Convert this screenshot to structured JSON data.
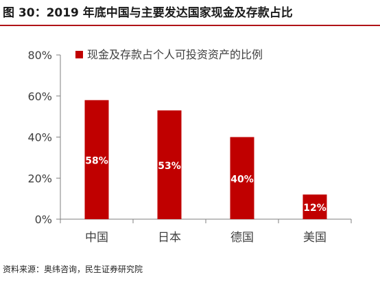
{
  "title": "图 30：2019 年底中国与主要发达国家现金及存款占比",
  "source": "资料来源：奥纬咨询，民生证券研究院",
  "colors": {
    "accent": "#b01317",
    "bar": "#c00000",
    "axis": "#7f7f7f",
    "label_text": "#404040",
    "data_label": "#ffffff"
  },
  "chart_data": {
    "type": "bar",
    "title": "",
    "xlabel": "",
    "ylabel": "",
    "categories": [
      "中国",
      "日本",
      "德国",
      "美国"
    ],
    "series": [
      {
        "name": "现金及存款占个人可投资资产的比例",
        "values": [
          58,
          53,
          40,
          12
        ],
        "labels": [
          "58%",
          "53%",
          "40%",
          "12%"
        ]
      }
    ],
    "ylim": [
      0,
      80
    ],
    "yticks": [
      0,
      20,
      40,
      60,
      80
    ],
    "ytick_labels": [
      "0%",
      "20%",
      "40%",
      "60%",
      "80%"
    ],
    "grid": false,
    "legend_position": "top-right"
  }
}
